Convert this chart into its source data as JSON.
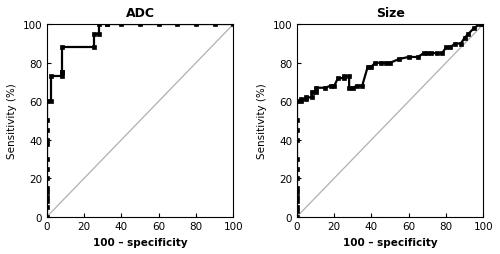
{
  "adc_fpr": [
    0,
    0,
    0,
    0,
    0,
    0,
    0,
    0,
    0,
    0,
    0,
    0,
    0,
    0,
    2,
    2,
    8,
    8,
    8,
    8,
    25,
    25,
    28,
    28,
    32,
    32,
    40,
    50,
    60,
    70,
    80,
    90,
    100
  ],
  "adc_tpr": [
    0,
    5,
    8,
    10,
    13,
    15,
    20,
    25,
    30,
    38,
    40,
    45,
    50,
    60,
    60,
    73,
    73,
    75,
    75,
    88,
    88,
    95,
    95,
    100,
    100,
    100,
    100,
    100,
    100,
    100,
    100,
    100,
    100
  ],
  "size_fpr": [
    0,
    0,
    0,
    0,
    0,
    0,
    0,
    0,
    0,
    0,
    0,
    0,
    0,
    0,
    2,
    2,
    5,
    5,
    8,
    8,
    10,
    10,
    15,
    18,
    20,
    22,
    25,
    25,
    28,
    28,
    30,
    32,
    35,
    38,
    40,
    42,
    45,
    48,
    50,
    55,
    60,
    65,
    68,
    70,
    72,
    75,
    78,
    80,
    82,
    85,
    88,
    90,
    92,
    95,
    98,
    100
  ],
  "size_tpr": [
    0,
    3,
    5,
    8,
    10,
    13,
    15,
    20,
    25,
    30,
    40,
    45,
    50,
    60,
    60,
    61,
    61,
    62,
    62,
    65,
    65,
    67,
    67,
    68,
    68,
    72,
    72,
    73,
    73,
    67,
    67,
    68,
    68,
    78,
    78,
    80,
    80,
    80,
    80,
    82,
    83,
    83,
    85,
    85,
    85,
    85,
    85,
    88,
    88,
    90,
    90,
    93,
    95,
    98,
    100,
    100
  ],
  "title_adc": "ADC",
  "title_size": "Size",
  "xlabel": "100 – specificity",
  "ylabel": "Sensitivity (%)",
  "xlim": [
    0,
    100
  ],
  "ylim": [
    0,
    100
  ],
  "xticks": [
    0,
    20,
    40,
    60,
    80,
    100
  ],
  "yticks": [
    0,
    20,
    40,
    60,
    80,
    100
  ],
  "line_color": "#000000",
  "diag_color": "#b0b0b0",
  "marker": "s",
  "markersize": 2.5,
  "linewidth": 1.6,
  "title_fontsize": 9,
  "label_fontsize": 7.5,
  "tick_fontsize": 7.5,
  "fig_width": 5.0,
  "fig_height": 2.55,
  "dpi": 100
}
